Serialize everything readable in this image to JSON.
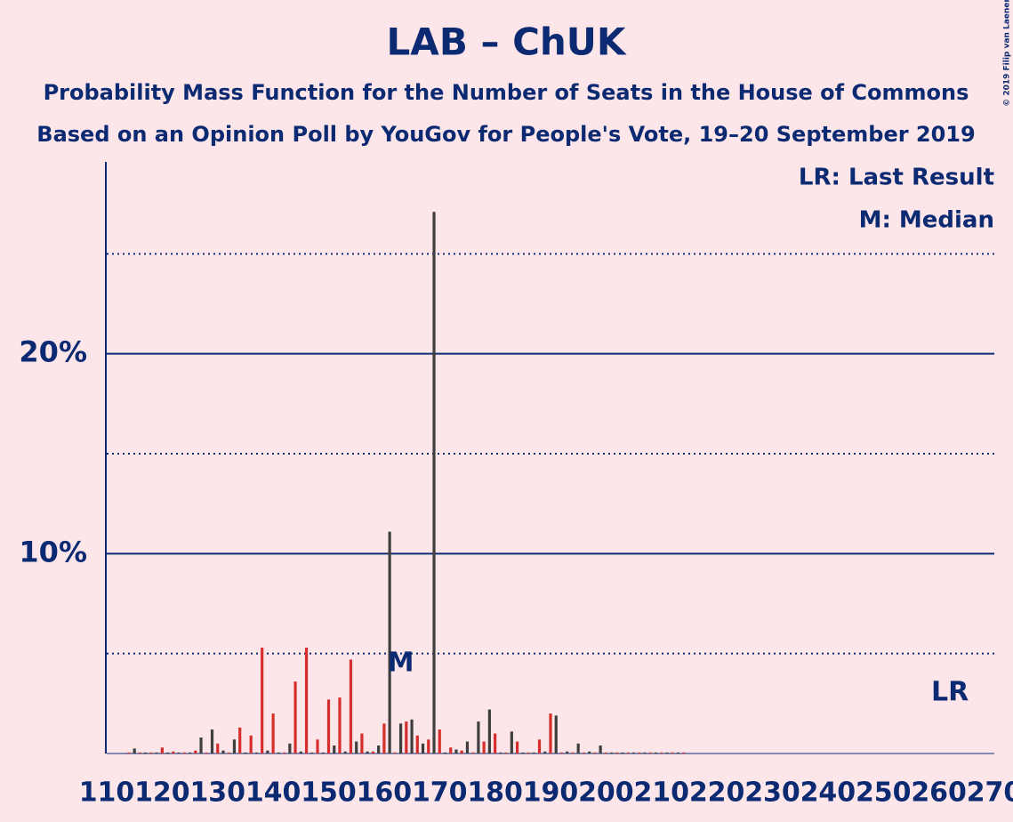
{
  "chart_data": {
    "type": "bar",
    "title": "LAB – ChUK",
    "subtitle": "Probability Mass Function for the Number of Seats in the House of Commons",
    "subtitle2": "Based on an Opinion Poll by YouGov for People's Vote, 19–20 September 2019",
    "annotations": [
      "LR: Last Result",
      "M: Median"
    ],
    "copyright": "© 2019 Filip van Laenen",
    "median": {
      "value": 163,
      "label": "M"
    },
    "last_result": {
      "value": 262,
      "label": "LR"
    },
    "bar_colors": [
      "#d42f2c",
      "#3f3f3f"
    ],
    "x": [
      110,
      111,
      112,
      113,
      114,
      115,
      116,
      117,
      118,
      119,
      120,
      121,
      122,
      123,
      124,
      125,
      126,
      127,
      128,
      129,
      130,
      131,
      132,
      133,
      134,
      135,
      136,
      137,
      138,
      139,
      140,
      141,
      142,
      143,
      144,
      145,
      146,
      147,
      148,
      149,
      150,
      151,
      152,
      153,
      154,
      155,
      156,
      157,
      158,
      159,
      160,
      161,
      162,
      163,
      164,
      165,
      166,
      167,
      168,
      169,
      170,
      171,
      172,
      173,
      174,
      175,
      176,
      177,
      178,
      179,
      180,
      181,
      182,
      183,
      184,
      185,
      186,
      187,
      188,
      189,
      190,
      191,
      192,
      193,
      194,
      195,
      196,
      197,
      198,
      199,
      200,
      201,
      202,
      203,
      204,
      205,
      206,
      207,
      208,
      209,
      210,
      211,
      212,
      213,
      214,
      215,
      216,
      217,
      218,
      219,
      220,
      221,
      222,
      223,
      224,
      225,
      226,
      227,
      228,
      229,
      230,
      231,
      232,
      233,
      234,
      235,
      236,
      237,
      238,
      239,
      240,
      241,
      242,
      243,
      244,
      245,
      246,
      247,
      248,
      249,
      250,
      251,
      252,
      253,
      254,
      255,
      256,
      257,
      258,
      259,
      260,
      261,
      262,
      263,
      264,
      265,
      266,
      267,
      268,
      269,
      270
    ],
    "values": [
      0,
      0,
      0,
      0,
      0.05,
      0.25,
      0.05,
      0.05,
      0.05,
      0.05,
      0.3,
      0.05,
      0.1,
      0.05,
      0.05,
      0.05,
      0.15,
      0.8,
      0.05,
      1.2,
      0.5,
      0.15,
      0.05,
      0.7,
      1.3,
      0.05,
      0.9,
      0.05,
      5.3,
      0.15,
      2.0,
      0.05,
      0.05,
      0.5,
      3.6,
      0.1,
      5.3,
      0.05,
      0.7,
      0.05,
      2.7,
      0.4,
      2.8,
      0.1,
      4.7,
      0.6,
      1.0,
      0.1,
      0.1,
      0.4,
      1.5,
      11.1,
      0.05,
      1.5,
      1.6,
      1.7,
      0.9,
      0.5,
      0.7,
      27.1,
      1.2,
      0.05,
      0.3,
      0.2,
      0.15,
      0.6,
      0.05,
      1.6,
      0.6,
      2.2,
      1.0,
      0.05,
      0.05,
      1.1,
      0.6,
      0.05,
      0.05,
      0.05,
      0.7,
      0.1,
      2.0,
      1.9,
      0.05,
      0.1,
      0.05,
      0.5,
      0.05,
      0.1,
      0.05,
      0.4,
      0.05,
      0.05,
      0.05,
      0.05,
      0.05,
      0.05,
      0.05,
      0.05,
      0.05,
      0.05,
      0.05,
      0.05,
      0.05,
      0.05,
      0.05,
      0,
      0,
      0,
      0,
      0,
      0,
      0,
      0,
      0,
      0,
      0,
      0,
      0,
      0,
      0,
      0,
      0,
      0,
      0,
      0,
      0,
      0,
      0,
      0,
      0,
      0,
      0,
      0,
      0,
      0,
      0,
      0,
      0,
      0,
      0,
      0,
      0,
      0,
      0,
      0,
      0,
      0,
      0,
      0,
      0,
      0,
      0,
      0,
      0,
      0,
      0,
      0,
      0,
      0,
      0,
      0
    ],
    "xlim": [
      110,
      270
    ],
    "xticks": [
      110,
      120,
      130,
      140,
      150,
      160,
      170,
      180,
      190,
      200,
      210,
      220,
      230,
      240,
      250,
      260,
      270
    ],
    "ylim": [
      0,
      29.6
    ],
    "yticks": [
      {
        "value": 10,
        "label": "10%"
      },
      {
        "value": 20,
        "label": "20%"
      }
    ],
    "yminor": [
      5,
      15,
      25
    ],
    "grid": true,
    "color": "#0c2a72"
  }
}
